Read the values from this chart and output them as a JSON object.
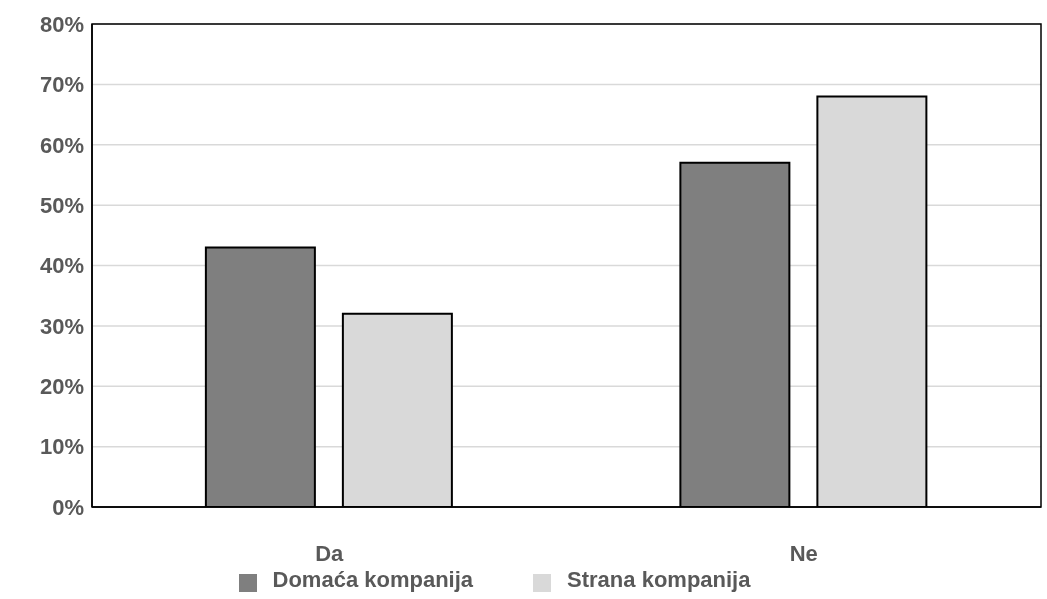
{
  "chart_data": {
    "type": "bar",
    "categories": [
      "Da",
      "Ne"
    ],
    "series": [
      {
        "name": "Domaća kompanija",
        "color": "#7f7f7f",
        "values": [
          43,
          57
        ]
      },
      {
        "name": "Strana kompanija",
        "color": "#d9d9d9",
        "values": [
          32,
          68
        ]
      }
    ],
    "ylim": [
      0,
      80
    ],
    "yticks": [
      {
        "value": 0,
        "label": "0%"
      },
      {
        "value": 10,
        "label": "10%"
      },
      {
        "value": 20,
        "label": "20%"
      },
      {
        "value": 30,
        "label": "30%"
      },
      {
        "value": 40,
        "label": "40%"
      },
      {
        "value": 50,
        "label": "50%"
      },
      {
        "value": 60,
        "label": "60%"
      },
      {
        "value": 70,
        "label": "70%"
      },
      {
        "value": 80,
        "label": "80%"
      }
    ],
    "grid": "y",
    "legend": "bottom"
  }
}
